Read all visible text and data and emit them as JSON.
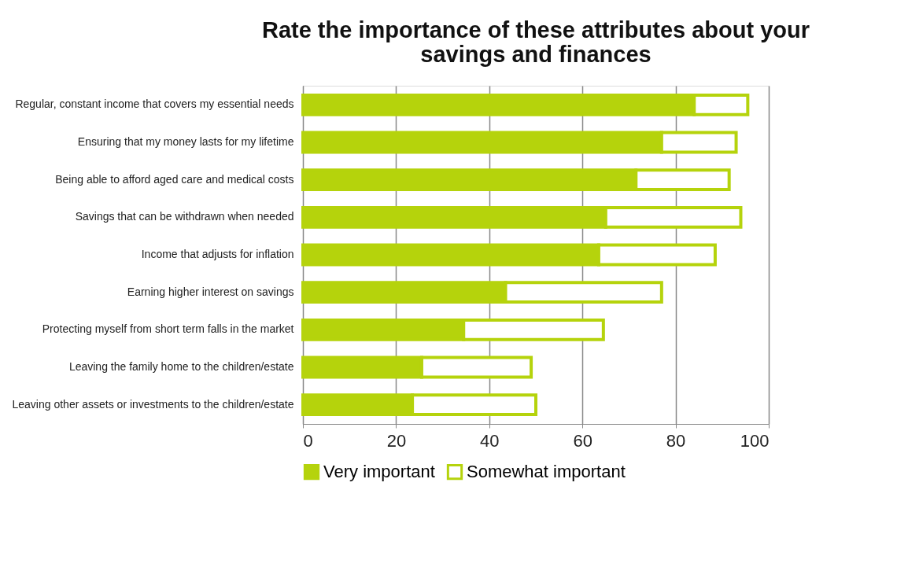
{
  "chart_data": {
    "type": "bar",
    "orientation": "horizontal",
    "stacked": true,
    "title": "Rate the importance of these attributes about your savings and finances",
    "categories": [
      "Regular, constant income that covers my essential needs",
      "Ensuring that my money lasts for my lifetime",
      "Being able to afford aged care and medical costs",
      "Savings that can be withdrawn when needed",
      "Income that adjusts for inflation",
      "Earning higher interest on savings",
      "Protecting myself from short term falls in the market",
      "Leaving the family home to the children/estate",
      "Leaving other assets or investments to the children/estate"
    ],
    "series": [
      {
        "name": "Very important",
        "color": "#b5d30c",
        "values": [
          84,
          77,
          71.5,
          65,
          63.5,
          43.5,
          34.5,
          25.5,
          23.5
        ]
      },
      {
        "name": "Somewhat important",
        "color": "#b5d30c",
        "values": [
          11.5,
          16,
          20,
          29,
          25,
          33.5,
          30,
          23.5,
          26.5
        ]
      }
    ],
    "xlim": [
      0,
      100
    ],
    "xticks": [
      0,
      20,
      40,
      60,
      80,
      100
    ],
    "grid": "x",
    "legend": "bottom"
  }
}
